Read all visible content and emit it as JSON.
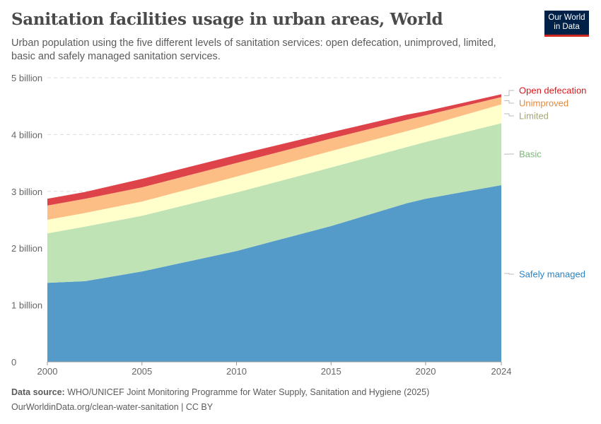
{
  "title": "Sanitation facilities usage in urban areas, World",
  "subtitle": "Urban population using the five different levels of sanitation services: open defecation, unimproved, limited, basic and safely managed sanitation services.",
  "logo": {
    "line1": "Our World",
    "line2": "in Data"
  },
  "footer": {
    "source_label": "Data source:",
    "source_text": "WHO/UNICEF Joint Monitoring Programme for Water Supply, Sanitation and Hygiene (2025)",
    "url_license": "OurWorldinData.org/clean-water-sanitation | CC BY"
  },
  "chart_data": {
    "type": "area",
    "stacked": true,
    "x": [
      2000,
      2002,
      2005,
      2010,
      2015,
      2019,
      2020,
      2024
    ],
    "xlim": [
      2000,
      2024
    ],
    "ylim": [
      0,
      5000000000
    ],
    "x_ticks": [
      "2000",
      "2005",
      "2010",
      "2015",
      "2020",
      "2024"
    ],
    "x_tick_values": [
      2000,
      2005,
      2010,
      2015,
      2020,
      2024
    ],
    "y_ticks": [
      "0",
      "1 billion",
      "2 billion",
      "3 billion",
      "4 billion",
      "5 billion"
    ],
    "y_tick_values": [
      0,
      1000000000,
      2000000000,
      3000000000,
      4000000000,
      5000000000
    ],
    "grid": "horizontal dashed",
    "legend": "right, labels at line ends",
    "series": [
      {
        "name": "Safely managed",
        "color": "#559bc9",
        "label_color": "#2c83c3",
        "values": [
          1390000000,
          1420000000,
          1590000000,
          1950000000,
          2390000000,
          2790000000,
          2870000000,
          3110000000
        ]
      },
      {
        "name": "Basic",
        "color": "#bfe3b5",
        "label_color": "#7fb57a",
        "values": [
          870000000,
          960000000,
          980000000,
          1030000000,
          1030000000,
          990000000,
          1000000000,
          1090000000
        ]
      },
      {
        "name": "Limited",
        "color": "#ffffcc",
        "label_color": "#a6a678",
        "values": [
          240000000,
          240000000,
          250000000,
          280000000,
          290000000,
          280000000,
          280000000,
          330000000
        ]
      },
      {
        "name": "Unimproved",
        "color": "#fdbe85",
        "label_color": "#e08a3c",
        "values": [
          250000000,
          250000000,
          250000000,
          240000000,
          220000000,
          200000000,
          190000000,
          130000000
        ]
      },
      {
        "name": "Open defecation",
        "color": "#de4349",
        "label_color": "#d7191c",
        "values": [
          120000000,
          120000000,
          150000000,
          140000000,
          110000000,
          90000000,
          70000000,
          50000000
        ]
      }
    ]
  }
}
